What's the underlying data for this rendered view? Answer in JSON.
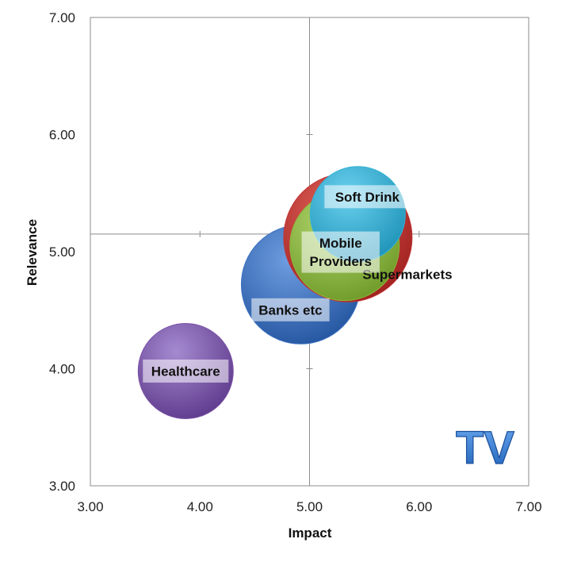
{
  "chart_data": {
    "type": "bubble",
    "xlabel": "Impact",
    "ylabel": "Relevance",
    "xlim": [
      3,
      7
    ],
    "ylim": [
      3,
      7
    ],
    "x_ticks": [
      "3.00",
      "4.00",
      "5.00",
      "6.00",
      "7.00"
    ],
    "y_ticks": [
      "3.00",
      "4.00",
      "5.00",
      "6.00",
      "7.00"
    ],
    "quadrant_lines": {
      "x": 5.0,
      "y": 5.15
    },
    "grid": false,
    "series": [
      {
        "name": "Healthcare",
        "x": 3.87,
        "y": 3.98,
        "size": 1.0,
        "color": "#7b52a6"
      },
      {
        "name": "Banks etc",
        "x": 4.92,
        "y": 4.72,
        "size": 1.25,
        "color": "#3a70c0"
      },
      {
        "name": "Supermarkets",
        "x": 5.35,
        "y": 5.12,
        "size": 1.35,
        "color": "#c03634"
      },
      {
        "name": "Mobile Providers",
        "x": 5.32,
        "y": 5.05,
        "size": 1.15,
        "color": "#8cba3c"
      },
      {
        "name": "Soft Drink",
        "x": 5.44,
        "y": 5.32,
        "size": 1.0,
        "color": "#33b3d6"
      }
    ],
    "watermark": "TV"
  }
}
